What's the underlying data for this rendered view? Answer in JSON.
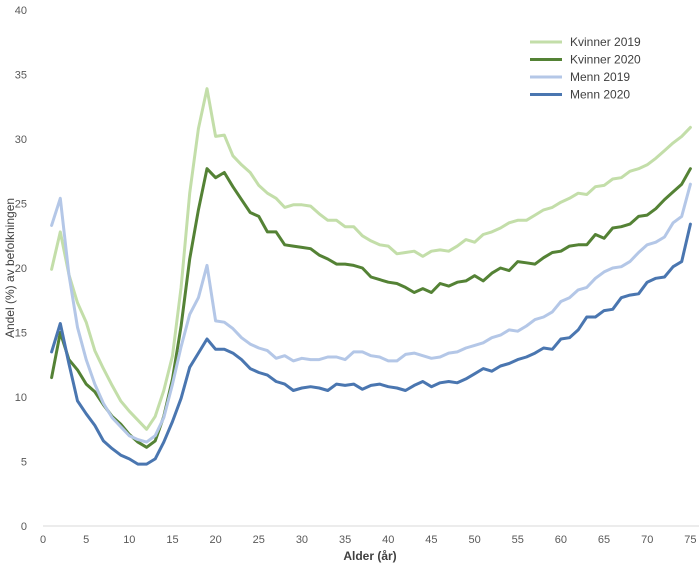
{
  "chart_data": {
    "type": "line",
    "title": "",
    "xlabel": "Alder (år)",
    "ylabel": "Andel (%) av befolkningen",
    "xlim": [
      0,
      76
    ],
    "ylim": [
      0,
      40
    ],
    "x_ticks": [
      0,
      5,
      10,
      15,
      20,
      25,
      30,
      35,
      40,
      45,
      50,
      55,
      60,
      65,
      70,
      75
    ],
    "y_ticks": [
      0,
      5,
      10,
      15,
      20,
      25,
      30,
      35,
      40
    ],
    "grid": false,
    "legend_position": "top-right",
    "x": [
      1,
      2,
      3,
      4,
      5,
      6,
      7,
      8,
      9,
      10,
      11,
      12,
      13,
      14,
      15,
      16,
      17,
      18,
      19,
      20,
      21,
      22,
      23,
      24,
      25,
      26,
      27,
      28,
      29,
      30,
      31,
      32,
      33,
      34,
      35,
      36,
      37,
      38,
      39,
      40,
      41,
      42,
      43,
      44,
      45,
      46,
      47,
      48,
      49,
      50,
      51,
      52,
      53,
      54,
      55,
      56,
      57,
      58,
      59,
      60,
      61,
      62,
      63,
      64,
      65,
      66,
      67,
      68,
      69,
      70,
      71,
      72,
      73,
      74,
      75
    ],
    "series": [
      {
        "name": "Kvinner 2019",
        "color": "#c3dea9",
        "values": [
          19.9,
          22.8,
          19.5,
          17.3,
          15.8,
          13.6,
          12.2,
          10.9,
          9.7,
          8.9,
          8.2,
          7.5,
          8.5,
          10.5,
          13.2,
          18.5,
          25.8,
          30.8,
          33.9,
          30.2,
          30.3,
          28.7,
          28,
          27.4,
          26.4,
          25.8,
          25.4,
          24.7,
          24.9,
          24.9,
          24.8,
          24.2,
          23.7,
          23.7,
          23.2,
          23.2,
          22.5,
          22.1,
          21.8,
          21.7,
          21.1,
          21.2,
          21.3,
          20.9,
          21.3,
          21.4,
          21.3,
          21.7,
          22.2,
          22,
          22.6,
          22.8,
          23.1,
          23.5,
          23.7,
          23.7,
          24.1,
          24.5,
          24.7,
          25.1,
          25.4,
          25.8,
          25.7,
          26.3,
          26.4,
          26.9,
          27,
          27.5,
          27.7,
          28,
          28.5,
          29.1,
          29.7,
          30.2,
          30.9
        ]
      },
      {
        "name": "Kvinner 2020",
        "color": "#548235",
        "values": [
          11.5,
          15,
          12.9,
          12.1,
          11,
          10.4,
          9.4,
          8.5,
          7.9,
          7.1,
          6.5,
          6.1,
          6.6,
          8.5,
          11.4,
          15.5,
          20.7,
          24.5,
          27.7,
          27,
          27.4,
          26.3,
          25.3,
          24.3,
          24,
          22.8,
          22.8,
          21.8,
          21.7,
          21.6,
          21.5,
          21,
          20.7,
          20.3,
          20.3,
          20.2,
          20,
          19.3,
          19.1,
          18.9,
          18.8,
          18.5,
          18.1,
          18.4,
          18.1,
          18.8,
          18.6,
          18.9,
          19,
          19.4,
          19,
          19.6,
          20,
          19.8,
          20.5,
          20.4,
          20.3,
          20.8,
          21.2,
          21.3,
          21.7,
          21.8,
          21.8,
          22.6,
          22.3,
          23.1,
          23.2,
          23.4,
          24,
          24.1,
          24.6,
          25.3,
          25.9,
          26.5,
          27.7
        ]
      },
      {
        "name": "Menn 2019",
        "color": "#b4c7e7",
        "values": [
          23.3,
          25.4,
          19.5,
          15.4,
          12.9,
          11,
          9.5,
          8.4,
          7.7,
          7,
          6.7,
          6.5,
          7,
          8.4,
          11,
          13.9,
          16.4,
          17.7,
          20.2,
          15.9,
          15.8,
          15.3,
          14.6,
          14.1,
          13.8,
          13.6,
          13,
          13.2,
          12.8,
          13,
          12.9,
          12.9,
          13.1,
          13.1,
          12.9,
          13.5,
          13.5,
          13.2,
          13.1,
          12.8,
          12.8,
          13.3,
          13.4,
          13.2,
          13,
          13.1,
          13.4,
          13.5,
          13.8,
          14,
          14.2,
          14.6,
          14.8,
          15.2,
          15.1,
          15.5,
          16,
          16.2,
          16.6,
          17.4,
          17.7,
          18.3,
          18.5,
          19.2,
          19.7,
          20,
          20.1,
          20.5,
          21.2,
          21.8,
          22,
          22.4,
          23.5,
          24,
          26.5
        ]
      },
      {
        "name": "Menn 2020",
        "color": "#4a76b0",
        "values": [
          13.5,
          15.7,
          12.6,
          9.7,
          8.7,
          7.8,
          6.6,
          6,
          5.5,
          5.2,
          4.8,
          4.8,
          5.2,
          6.5,
          8.1,
          9.9,
          12.3,
          13.4,
          14.5,
          13.7,
          13.7,
          13.4,
          12.9,
          12.2,
          11.9,
          11.7,
          11.2,
          11,
          10.5,
          10.7,
          10.8,
          10.7,
          10.5,
          11,
          10.9,
          11,
          10.6,
          10.9,
          11,
          10.8,
          10.7,
          10.5,
          10.9,
          11.2,
          10.8,
          11.1,
          11.2,
          11.1,
          11.4,
          11.8,
          12.2,
          12,
          12.4,
          12.6,
          12.9,
          13.1,
          13.4,
          13.8,
          13.7,
          14.5,
          14.6,
          15.2,
          16.2,
          16.2,
          16.7,
          16.8,
          17.7,
          17.9,
          18,
          18.9,
          19.2,
          19.3,
          20.1,
          20.5,
          23.4
        ]
      }
    ]
  }
}
